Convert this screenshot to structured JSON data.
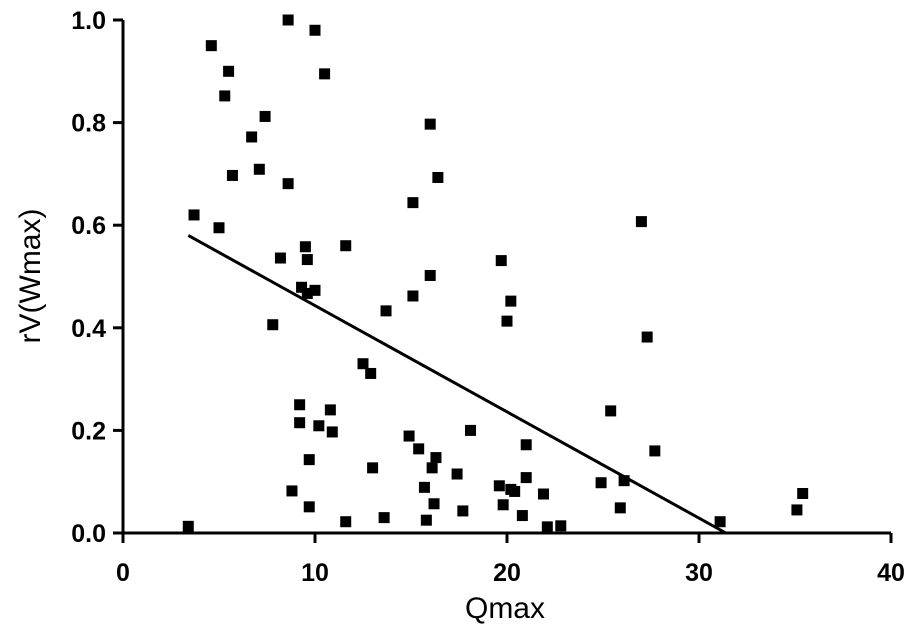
{
  "chart_data": {
    "type": "scatter",
    "title": "",
    "xlabel": "Qmax",
    "ylabel": "rV(Wmax)",
    "xlim": [
      0,
      40
    ],
    "ylim": [
      0,
      1.0
    ],
    "x_ticks": [
      0,
      10,
      20,
      30,
      40
    ],
    "x_tick_labels": [
      "0",
      "10",
      "20",
      "30",
      "40"
    ],
    "y_ticks": [
      0,
      0.2,
      0.4,
      0.6,
      0.8,
      1.0
    ],
    "y_tick_labels": [
      "0.0",
      "0.2",
      "0.4",
      "0.6",
      "0.8",
      "1.0"
    ],
    "grid": false,
    "marker": "square",
    "marker_color": "#000000",
    "points": [
      [
        3.4,
        0.013
      ],
      [
        3.7,
        0.62
      ],
      [
        4.6,
        0.95
      ],
      [
        5.0,
        0.595
      ],
      [
        5.3,
        0.852
      ],
      [
        5.5,
        0.9
      ],
      [
        5.7,
        0.697
      ],
      [
        6.7,
        0.772
      ],
      [
        7.1,
        0.709
      ],
      [
        7.4,
        0.812
      ],
      [
        7.8,
        0.406
      ],
      [
        8.2,
        0.536
      ],
      [
        8.6,
        0.681
      ],
      [
        8.6,
        1.0
      ],
      [
        8.8,
        0.082
      ],
      [
        9.2,
        0.25
      ],
      [
        9.2,
        0.215
      ],
      [
        9.3,
        0.479
      ],
      [
        9.5,
        0.558
      ],
      [
        9.6,
        0.533
      ],
      [
        9.6,
        0.467
      ],
      [
        9.7,
        0.143
      ],
      [
        9.7,
        0.051
      ],
      [
        10.0,
        0.473
      ],
      [
        10.0,
        0.98
      ],
      [
        10.2,
        0.209
      ],
      [
        10.5,
        0.895
      ],
      [
        10.8,
        0.24
      ],
      [
        10.9,
        0.197
      ],
      [
        11.6,
        0.022
      ],
      [
        11.6,
        0.56
      ],
      [
        12.5,
        0.33
      ],
      [
        12.9,
        0.311
      ],
      [
        13.0,
        0.127
      ],
      [
        13.6,
        0.03
      ],
      [
        13.7,
        0.433
      ],
      [
        14.9,
        0.189
      ],
      [
        15.1,
        0.644
      ],
      [
        15.1,
        0.462
      ],
      [
        15.4,
        0.164
      ],
      [
        15.7,
        0.089
      ],
      [
        15.8,
        0.025
      ],
      [
        16.0,
        0.797
      ],
      [
        16.0,
        0.502
      ],
      [
        16.1,
        0.127
      ],
      [
        16.2,
        0.057
      ],
      [
        16.3,
        0.147
      ],
      [
        16.4,
        0.693
      ],
      [
        17.4,
        0.115
      ],
      [
        17.7,
        0.043
      ],
      [
        18.1,
        0.2
      ],
      [
        19.6,
        0.092
      ],
      [
        19.7,
        0.531
      ],
      [
        19.8,
        0.055
      ],
      [
        20.0,
        0.413
      ],
      [
        20.2,
        0.452
      ],
      [
        20.2,
        0.085
      ],
      [
        20.4,
        0.081
      ],
      [
        20.8,
        0.034
      ],
      [
        21.0,
        0.172
      ],
      [
        21.0,
        0.108
      ],
      [
        21.9,
        0.076
      ],
      [
        22.1,
        0.012
      ],
      [
        22.8,
        0.014
      ],
      [
        24.9,
        0.098
      ],
      [
        25.4,
        0.238
      ],
      [
        25.9,
        0.049
      ],
      [
        26.1,
        0.102
      ],
      [
        27.0,
        0.607
      ],
      [
        27.3,
        0.382
      ],
      [
        27.7,
        0.16
      ],
      [
        31.1,
        0.022
      ],
      [
        35.1,
        0.045
      ],
      [
        35.4,
        0.077
      ]
    ],
    "trendline": {
      "type": "linear",
      "x": [
        3.4,
        31.4
      ],
      "y": [
        0.58,
        0.0
      ]
    }
  }
}
